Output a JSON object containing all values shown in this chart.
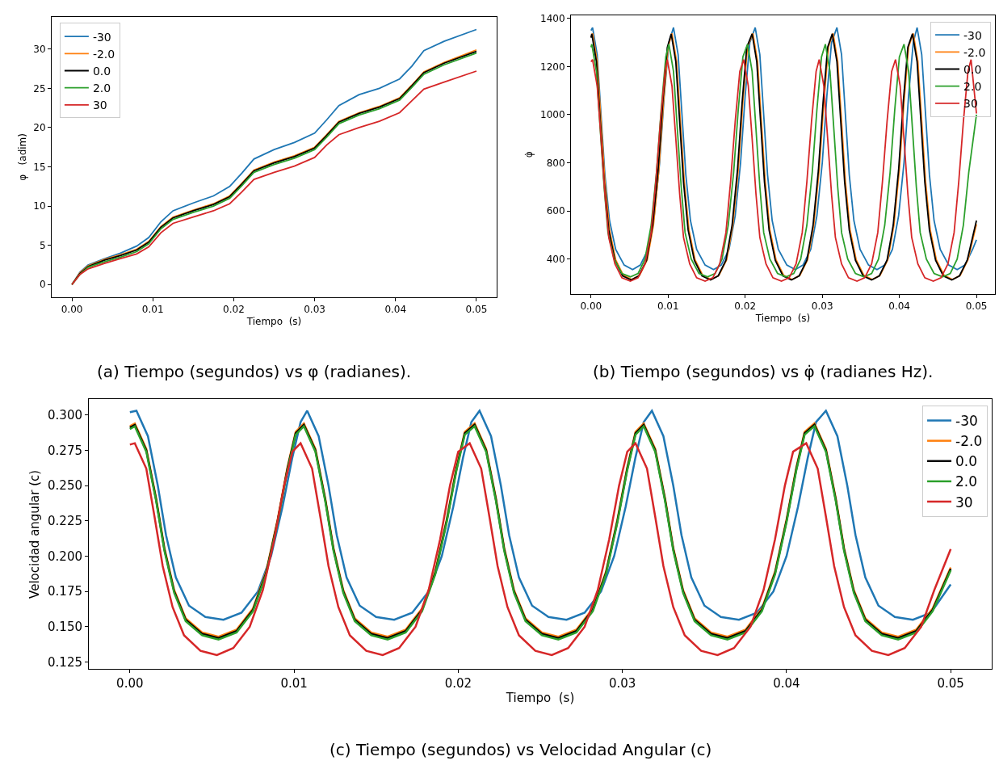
{
  "chart_data": [
    {
      "type": "line",
      "title": "(a) Tiempo (segundos) vs φ (radianes).",
      "xlabel": "Tiempo  (s)",
      "ylabel": "φ   (adim)",
      "legend": "top left",
      "xlim": [
        -0.0025,
        0.0525
      ],
      "xticks": [
        {
          "value": 0,
          "label": "0.00"
        },
        {
          "value": 0.01,
          "label": "0.01"
        },
        {
          "value": 0.02,
          "label": "0.02"
        },
        {
          "value": 0.03,
          "label": "0.03"
        },
        {
          "value": 0.04,
          "label": "0.04"
        },
        {
          "value": 0.05,
          "label": "0.05"
        }
      ],
      "ylim": [
        -1.6,
        34.1
      ],
      "yticks": [
        0,
        5,
        10,
        15,
        20,
        25,
        30
      ],
      "x": [
        0,
        0.001,
        0.002,
        0.004,
        0.006,
        0.008,
        0.0095,
        0.011,
        0.0125,
        0.015,
        0.0175,
        0.0195,
        0.021,
        0.0225,
        0.025,
        0.0275,
        0.03,
        0.0315,
        0.033,
        0.0355,
        0.038,
        0.0405,
        0.042,
        0.0435,
        0.046,
        0.05
      ],
      "series": [
        {
          "name": "-30",
          "color": "#1f77b4",
          "values": [
            0,
            1.6,
            2.5,
            3.3,
            4.0,
            4.9,
            6.0,
            8.0,
            9.4,
            10.4,
            11.3,
            12.5,
            14.2,
            16.0,
            17.2,
            18.1,
            19.3,
            21.0,
            22.8,
            24.2,
            25.0,
            26.2,
            27.8,
            29.8,
            31.0,
            32.5
          ]
        },
        {
          "name": "-2.0",
          "color": "#ff7f0e",
          "values": [
            0,
            1.5,
            2.4,
            3.2,
            3.8,
            4.5,
            5.5,
            7.4,
            8.6,
            9.5,
            10.3,
            11.3,
            12.9,
            14.6,
            15.6,
            16.4,
            17.5,
            19.1,
            20.8,
            21.9,
            22.7,
            23.8,
            25.4,
            27.1,
            28.3,
            29.9
          ]
        },
        {
          "name": "0.0",
          "color": "#000000",
          "values": [
            0,
            1.4,
            2.3,
            3.1,
            3.7,
            4.4,
            5.4,
            7.3,
            8.5,
            9.4,
            10.2,
            11.2,
            12.8,
            14.5,
            15.5,
            16.3,
            17.4,
            19.0,
            20.7,
            21.8,
            22.6,
            23.7,
            25.3,
            27.0,
            28.2,
            29.7
          ]
        },
        {
          "name": "2.0",
          "color": "#2ca02c",
          "values": [
            0,
            1.3,
            2.2,
            2.9,
            3.5,
            4.2,
            5.2,
            7.1,
            8.3,
            9.2,
            10.0,
            11.0,
            12.6,
            14.3,
            15.3,
            16.1,
            17.2,
            18.8,
            20.5,
            21.6,
            22.4,
            23.5,
            25.1,
            26.8,
            28.0,
            29.5
          ]
        },
        {
          "name": "30",
          "color": "#d62728",
          "values": [
            0,
            1.3,
            2.0,
            2.7,
            3.3,
            3.9,
            4.8,
            6.6,
            7.8,
            8.6,
            9.4,
            10.3,
            11.8,
            13.4,
            14.3,
            15.1,
            16.2,
            17.8,
            19.1,
            20.0,
            20.8,
            21.9,
            23.4,
            24.9,
            25.8,
            27.2
          ]
        }
      ]
    },
    {
      "type": "line",
      "title": "(b) Tiempo (segundos) vs φ̇ (radianes Hz).",
      "xlabel": "Tiempo  (s)",
      "ylabel": "φ̇",
      "legend": "top right",
      "xlim": [
        -0.0026,
        0.0524
      ],
      "xticks": [
        {
          "value": 0,
          "label": "0.00"
        },
        {
          "value": 0.01,
          "label": "0.01"
        },
        {
          "value": 0.02,
          "label": "0.02"
        },
        {
          "value": 0.03,
          "label": "0.03"
        },
        {
          "value": 0.04,
          "label": "0.04"
        },
        {
          "value": 0.05,
          "label": "0.05"
        }
      ],
      "ylim": [
        255,
        1413
      ],
      "yticks": [
        400,
        600,
        800,
        1000,
        1200,
        1400
      ],
      "x": [
        0,
        0.0001,
        0.0007,
        0.0012,
        0.0017,
        0.0023,
        0.0031,
        0.0041,
        0.0052,
        0.0062,
        0.0072,
        0.008,
        0.0087,
        0.0093,
        0.0099,
        0.0104,
        0.011,
        0.0115,
        0.012,
        0.0126,
        0.0134,
        0.0144,
        0.0155,
        0.0165,
        0.0175,
        0.0183,
        0.019,
        0.0196,
        0.0202,
        0.0209,
        0.0215,
        0.022,
        0.0225,
        0.0231,
        0.0239,
        0.0249,
        0.026,
        0.027,
        0.028,
        0.0288,
        0.0295,
        0.0301,
        0.0307,
        0.0313,
        0.0319,
        0.0324,
        0.0329,
        0.0335,
        0.0343,
        0.0353,
        0.0364,
        0.0374,
        0.0384,
        0.0392,
        0.0399,
        0.0405,
        0.0411,
        0.0417,
        0.0423,
        0.0428,
        0.0433,
        0.0439,
        0.0447,
        0.0457,
        0.0468,
        0.0478,
        0.0488,
        0.05
      ],
      "series": [
        {
          "name": "-30",
          "color": "#1f77b4",
          "x": [
            0,
            0.0002,
            0.0008,
            0.0013,
            0.0018,
            0.0024,
            0.0032,
            0.0043,
            0.0054,
            0.0064,
            0.0074,
            0.0082,
            0.0089,
            0.0095,
            0.0101,
            0.0107,
            0.0113,
            0.0118,
            0.0123,
            0.0129,
            0.0137,
            0.0148,
            0.0159,
            0.0169,
            0.0179,
            0.0187,
            0.0194,
            0.02,
            0.0206,
            0.0213,
            0.0219,
            0.0224,
            0.0229,
            0.0235,
            0.0243,
            0.0254,
            0.0265,
            0.0275,
            0.0285,
            0.0293,
            0.03,
            0.0306,
            0.0312,
            0.0319,
            0.0325,
            0.033,
            0.0335,
            0.0341,
            0.0349,
            0.036,
            0.0371,
            0.0381,
            0.0391,
            0.0399,
            0.0406,
            0.0412,
            0.0418,
            0.0423,
            0.0429,
            0.0434,
            0.0439,
            0.0445,
            0.0453,
            0.0464,
            0.0475,
            0.0485,
            0.0495,
            0.05
          ],
          "values": [
            1350,
            1362,
            1250,
            1000,
            750,
            560,
            440,
            375,
            356,
            375,
            440,
            580,
            800,
            1080,
            1300,
            1362,
            1250,
            1000,
            750,
            560,
            440,
            375,
            356,
            375,
            440,
            580,
            800,
            1080,
            1300,
            1362,
            1250,
            1000,
            750,
            560,
            440,
            375,
            356,
            375,
            440,
            580,
            800,
            1080,
            1300,
            1362,
            1250,
            1000,
            750,
            560,
            440,
            375,
            356,
            375,
            440,
            580,
            800,
            1080,
            1300,
            1362,
            1250,
            1000,
            750,
            560,
            440,
            375,
            356,
            375,
            440,
            480
          ]
        },
        {
          "name": "-2.0",
          "color": "#ff7f0e",
          "x": [
            0,
            0.0002,
            0.0008,
            0.0013,
            0.0018,
            0.0024,
            0.0032,
            0.0042,
            0.0053,
            0.0063,
            0.0073,
            0.0081,
            0.0088,
            0.0094,
            0.01,
            0.0105,
            0.0111,
            0.0116,
            0.0121,
            0.0127,
            0.0135,
            0.0145,
            0.0156,
            0.0166,
            0.0176,
            0.0184,
            0.0191,
            0.0197,
            0.0203,
            0.021,
            0.0216,
            0.0221,
            0.0226,
            0.0232,
            0.024,
            0.025,
            0.0261,
            0.0271,
            0.0281,
            0.0289,
            0.0296,
            0.0302,
            0.0308,
            0.0314,
            0.032,
            0.0325,
            0.033,
            0.0336,
            0.0344,
            0.0354,
            0.0365,
            0.0375,
            0.0385,
            0.0393,
            0.04,
            0.0406,
            0.0412,
            0.0418,
            0.0424,
            0.0429,
            0.0434,
            0.044,
            0.0448,
            0.0458,
            0.0469,
            0.0479,
            0.0489,
            0.05
          ],
          "values": [
            1322,
            1338,
            1222,
            972,
            722,
            522,
            397,
            332,
            315,
            332,
            397,
            542,
            772,
            1052,
            1282,
            1338,
            1222,
            972,
            722,
            522,
            397,
            332,
            315,
            332,
            397,
            542,
            772,
            1052,
            1282,
            1338,
            1222,
            972,
            722,
            522,
            397,
            332,
            315,
            332,
            397,
            542,
            772,
            1052,
            1282,
            1338,
            1222,
            972,
            722,
            522,
            397,
            332,
            315,
            332,
            397,
            542,
            772,
            1052,
            1282,
            1338,
            1222,
            972,
            722,
            522,
            397,
            332,
            315,
            332,
            397,
            545
          ]
        },
        {
          "name": "0.0",
          "color": "#000000",
          "values": [
            1320,
            1336,
            1220,
            970,
            720,
            520,
            395,
            330,
            313,
            330,
            395,
            540,
            770,
            1050,
            1280,
            1336,
            1220,
            970,
            720,
            520,
            395,
            330,
            313,
            330,
            395,
            540,
            770,
            1050,
            1280,
            1336,
            1220,
            970,
            720,
            520,
            395,
            330,
            313,
            330,
            395,
            540,
            770,
            1050,
            1280,
            1336,
            1220,
            970,
            720,
            520,
            395,
            330,
            313,
            330,
            395,
            540,
            770,
            1050,
            1280,
            1336,
            1220,
            970,
            720,
            520,
            395,
            330,
            313,
            330,
            395,
            560
          ]
        },
        {
          "name": "2.0",
          "color": "#2ca02c",
          "x": [
            0,
            0.0001,
            0.0007,
            0.0012,
            0.0017,
            0.0022,
            0.003,
            0.004,
            0.0051,
            0.0061,
            0.007,
            0.0078,
            0.0085,
            0.0091,
            0.0097,
            0.0101,
            0.0107,
            0.0112,
            0.0117,
            0.0122,
            0.013,
            0.014,
            0.0151,
            0.0161,
            0.017,
            0.0178,
            0.0185,
            0.0191,
            0.0197,
            0.0203,
            0.0209,
            0.0214,
            0.0219,
            0.0224,
            0.0232,
            0.0242,
            0.0253,
            0.0263,
            0.0272,
            0.028,
            0.0287,
            0.0293,
            0.0299,
            0.0304,
            0.031,
            0.0315,
            0.032,
            0.0325,
            0.0333,
            0.0343,
            0.0354,
            0.0364,
            0.0373,
            0.0381,
            0.0388,
            0.0394,
            0.04,
            0.0406,
            0.0412,
            0.0417,
            0.0422,
            0.0427,
            0.0435,
            0.0445,
            0.0456,
            0.0466,
            0.0475,
            0.0483,
            0.049,
            0.05
          ],
          "values": [
            1280,
            1293,
            1180,
            940,
            700,
            510,
            400,
            340,
            326,
            340,
            400,
            540,
            760,
            1020,
            1240,
            1293,
            1180,
            940,
            700,
            510,
            400,
            340,
            326,
            340,
            400,
            540,
            760,
            1020,
            1240,
            1293,
            1180,
            940,
            700,
            510,
            400,
            340,
            326,
            340,
            400,
            540,
            760,
            1020,
            1240,
            1293,
            1180,
            940,
            700,
            510,
            400,
            340,
            326,
            340,
            400,
            540,
            760,
            1020,
            1240,
            1293,
            1180,
            940,
            700,
            510,
            400,
            340,
            326,
            340,
            400,
            540,
            760,
            1000
          ]
        },
        {
          "name": "30",
          "color": "#d62728",
          "x": [
            0,
            0.0002,
            0.0008,
            0.0013,
            0.0018,
            0.0023,
            0.0031,
            0.004,
            0.0051,
            0.0061,
            0.007,
            0.0078,
            0.0084,
            0.009,
            0.0096,
            0.0099,
            0.0105,
            0.011,
            0.0115,
            0.012,
            0.0128,
            0.0137,
            0.0148,
            0.0158,
            0.0167,
            0.0175,
            0.0181,
            0.0187,
            0.0193,
            0.0198,
            0.0204,
            0.0209,
            0.0214,
            0.0219,
            0.0227,
            0.0236,
            0.0247,
            0.0257,
            0.0266,
            0.0274,
            0.028,
            0.0286,
            0.0292,
            0.0296,
            0.0302,
            0.0307,
            0.0312,
            0.0317,
            0.0325,
            0.0334,
            0.0345,
            0.0355,
            0.0364,
            0.0372,
            0.0378,
            0.0384,
            0.039,
            0.0395,
            0.0401,
            0.0406,
            0.0411,
            0.0416,
            0.0424,
            0.0433,
            0.0444,
            0.0454,
            0.0463,
            0.0471,
            0.0477,
            0.0483,
            0.0489,
            0.0493,
            0.05
          ],
          "values": [
            1220,
            1229,
            1120,
            900,
            670,
            490,
            380,
            322,
            308,
            322,
            380,
            510,
            720,
            970,
            1180,
            1229,
            1120,
            900,
            670,
            490,
            380,
            322,
            308,
            322,
            380,
            510,
            720,
            970,
            1180,
            1229,
            1120,
            900,
            670,
            490,
            380,
            322,
            308,
            322,
            380,
            510,
            720,
            970,
            1180,
            1229,
            1120,
            900,
            670,
            490,
            380,
            322,
            308,
            322,
            380,
            510,
            720,
            970,
            1180,
            1229,
            1120,
            900,
            670,
            490,
            380,
            322,
            308,
            322,
            380,
            510,
            720,
            970,
            1180,
            1229,
            1005
          ]
        }
      ]
    },
    {
      "type": "line",
      "title": "(c) Tiempo (segundos) vs Velocidad Angular (c)",
      "xlabel": "Tiempo  (s)",
      "ylabel": "Velocidad angular (c)",
      "legend": "top right",
      "xlim": [
        -0.0025,
        0.0525
      ],
      "xticks": [
        {
          "value": 0,
          "label": "0.00"
        },
        {
          "value": 0.01,
          "label": "0.01"
        },
        {
          "value": 0.02,
          "label": "0.02"
        },
        {
          "value": 0.03,
          "label": "0.03"
        },
        {
          "value": 0.04,
          "label": "0.04"
        },
        {
          "value": 0.05,
          "label": "0.05"
        }
      ],
      "ylim": [
        0.12,
        0.311
      ],
      "yticks": [
        0.125,
        {
          "value": 0.15,
          "label": "0.150"
        },
        0.175,
        {
          "value": 0.2,
          "label": "0.200"
        },
        0.225,
        {
          "value": 0.25,
          "label": "0.250"
        },
        0.275,
        {
          "value": 0.3,
          "label": "0.300"
        }
      ],
      "x": [
        0,
        0.0003,
        0.001,
        0.0016,
        0.0021,
        0.0027,
        0.0034,
        0.0044,
        0.0054,
        0.0065,
        0.0075,
        0.0083,
        0.009,
        0.0096,
        0.0101,
        0.0106,
        0.0113,
        0.0119,
        0.0124,
        0.013,
        0.0137,
        0.0147,
        0.0157,
        0.0168,
        0.0178,
        0.0186,
        0.0193,
        0.0199,
        0.0204,
        0.021,
        0.0217,
        0.0223,
        0.0228,
        0.0234,
        0.0241,
        0.0251,
        0.0261,
        0.0272,
        0.0282,
        0.029,
        0.0297,
        0.0303,
        0.0308,
        0.0313,
        0.032,
        0.0326,
        0.0331,
        0.0337,
        0.0344,
        0.0354,
        0.0364,
        0.0375,
        0.0385,
        0.0393,
        0.04,
        0.0406,
        0.0411,
        0.0417,
        0.0424,
        0.043,
        0.0435,
        0.0441,
        0.0448,
        0.0458,
        0.0468,
        0.0479,
        0.0489,
        0.05
      ],
      "series": [
        {
          "name": "-30",
          "color": "#1f77b4",
          "x": [
            0,
            0.0004,
            0.0011,
            0.0017,
            0.0022,
            0.0028,
            0.0036,
            0.0046,
            0.0057,
            0.0068,
            0.0078,
            0.0086,
            0.0093,
            0.0099,
            0.0104,
            0.0108,
            0.0115,
            0.0121,
            0.0126,
            0.0132,
            0.014,
            0.015,
            0.0161,
            0.0172,
            0.0182,
            0.019,
            0.0197,
            0.0203,
            0.0208,
            0.0213,
            0.022,
            0.0226,
            0.0231,
            0.0237,
            0.0245,
            0.0255,
            0.0266,
            0.0277,
            0.0287,
            0.0295,
            0.0302,
            0.0308,
            0.0313,
            0.0318,
            0.0325,
            0.0331,
            0.0336,
            0.0342,
            0.035,
            0.036,
            0.0371,
            0.0382,
            0.0392,
            0.04,
            0.0407,
            0.0413,
            0.0418,
            0.0424,
            0.0431,
            0.0437,
            0.0442,
            0.0448,
            0.0456,
            0.0466,
            0.0477,
            0.0488,
            0.05
          ],
          "values": [
            0.302,
            0.303,
            0.285,
            0.25,
            0.215,
            0.185,
            0.165,
            0.157,
            0.155,
            0.16,
            0.175,
            0.2,
            0.235,
            0.27,
            0.295,
            0.303,
            0.285,
            0.25,
            0.215,
            0.185,
            0.165,
            0.157,
            0.155,
            0.16,
            0.175,
            0.2,
            0.235,
            0.27,
            0.295,
            0.303,
            0.285,
            0.25,
            0.215,
            0.185,
            0.165,
            0.157,
            0.155,
            0.16,
            0.175,
            0.2,
            0.235,
            0.27,
            0.295,
            0.303,
            0.285,
            0.25,
            0.215,
            0.185,
            0.165,
            0.157,
            0.155,
            0.16,
            0.175,
            0.2,
            0.235,
            0.27,
            0.295,
            0.303,
            0.285,
            0.25,
            0.215,
            0.185,
            0.165,
            0.157,
            0.155,
            0.16,
            0.18
          ]
        },
        {
          "name": "-2.0",
          "color": "#ff7f0e",
          "values": [
            0.292,
            0.294,
            0.276,
            0.241,
            0.206,
            0.176,
            0.156,
            0.146,
            0.143,
            0.148,
            0.163,
            0.189,
            0.226,
            0.263,
            0.288,
            0.294,
            0.276,
            0.241,
            0.206,
            0.176,
            0.156,
            0.146,
            0.143,
            0.148,
            0.163,
            0.189,
            0.226,
            0.263,
            0.288,
            0.294,
            0.276,
            0.241,
            0.206,
            0.176,
            0.156,
            0.146,
            0.143,
            0.148,
            0.163,
            0.189,
            0.226,
            0.263,
            0.288,
            0.294,
            0.276,
            0.241,
            0.206,
            0.176,
            0.156,
            0.146,
            0.143,
            0.148,
            0.163,
            0.189,
            0.226,
            0.263,
            0.288,
            0.294,
            0.276,
            0.241,
            0.206,
            0.176,
            0.156,
            0.146,
            0.143,
            0.148,
            0.163,
            0.192
          ]
        },
        {
          "name": "0.0",
          "color": "#000000",
          "values": [
            0.291,
            0.293,
            0.275,
            0.24,
            0.205,
            0.175,
            0.155,
            0.145,
            0.142,
            0.147,
            0.162,
            0.188,
            0.225,
            0.262,
            0.287,
            0.293,
            0.275,
            0.24,
            0.205,
            0.175,
            0.155,
            0.145,
            0.142,
            0.147,
            0.162,
            0.188,
            0.225,
            0.262,
            0.287,
            0.293,
            0.275,
            0.24,
            0.205,
            0.175,
            0.155,
            0.145,
            0.142,
            0.147,
            0.162,
            0.188,
            0.225,
            0.262,
            0.287,
            0.293,
            0.275,
            0.24,
            0.205,
            0.175,
            0.155,
            0.145,
            0.142,
            0.147,
            0.162,
            0.188,
            0.225,
            0.262,
            0.287,
            0.293,
            0.275,
            0.24,
            0.205,
            0.175,
            0.155,
            0.145,
            0.142,
            0.147,
            0.162,
            0.191
          ]
        },
        {
          "name": "2.0",
          "color": "#2ca02c",
          "values": [
            0.29,
            0.292,
            0.274,
            0.239,
            0.204,
            0.174,
            0.154,
            0.144,
            0.141,
            0.146,
            0.161,
            0.187,
            0.224,
            0.261,
            0.286,
            0.292,
            0.274,
            0.239,
            0.204,
            0.174,
            0.154,
            0.144,
            0.141,
            0.146,
            0.161,
            0.187,
            0.224,
            0.261,
            0.286,
            0.292,
            0.274,
            0.239,
            0.204,
            0.174,
            0.154,
            0.144,
            0.141,
            0.146,
            0.161,
            0.187,
            0.224,
            0.261,
            0.286,
            0.292,
            0.274,
            0.239,
            0.204,
            0.174,
            0.154,
            0.144,
            0.141,
            0.146,
            0.161,
            0.187,
            0.224,
            0.261,
            0.286,
            0.292,
            0.274,
            0.239,
            0.204,
            0.174,
            0.154,
            0.144,
            0.141,
            0.146,
            0.161,
            0.19
          ]
        },
        {
          "name": "30",
          "color": "#d62728",
          "x": [
            0,
            0.0003,
            0.001,
            0.0015,
            0.002,
            0.0026,
            0.0033,
            0.0043,
            0.0053,
            0.0063,
            0.0073,
            0.0081,
            0.0088,
            0.0094,
            0.0099,
            0.0104,
            0.0111,
            0.0116,
            0.0121,
            0.0127,
            0.0134,
            0.0144,
            0.0154,
            0.0164,
            0.0174,
            0.0182,
            0.0189,
            0.0195,
            0.02,
            0.0207,
            0.0214,
            0.0219,
            0.0224,
            0.023,
            0.0237,
            0.0247,
            0.0257,
            0.0267,
            0.0277,
            0.0285,
            0.0292,
            0.0298,
            0.0303,
            0.0308,
            0.0315,
            0.032,
            0.0325,
            0.0331,
            0.0338,
            0.0348,
            0.0358,
            0.0368,
            0.0378,
            0.0386,
            0.0393,
            0.0399,
            0.0404,
            0.0412,
            0.0419,
            0.0424,
            0.0429,
            0.0435,
            0.0442,
            0.0452,
            0.0462,
            0.0472,
            0.0482,
            0.049,
            0.05
          ],
          "values": [
            0.279,
            0.28,
            0.262,
            0.228,
            0.193,
            0.164,
            0.144,
            0.133,
            0.13,
            0.135,
            0.15,
            0.176,
            0.212,
            0.25,
            0.274,
            0.28,
            0.262,
            0.228,
            0.193,
            0.164,
            0.144,
            0.133,
            0.13,
            0.135,
            0.15,
            0.176,
            0.212,
            0.25,
            0.274,
            0.28,
            0.262,
            0.228,
            0.193,
            0.164,
            0.144,
            0.133,
            0.13,
            0.135,
            0.15,
            0.176,
            0.212,
            0.25,
            0.274,
            0.28,
            0.262,
            0.228,
            0.193,
            0.164,
            0.144,
            0.133,
            0.13,
            0.135,
            0.15,
            0.176,
            0.212,
            0.25,
            0.274,
            0.28,
            0.262,
            0.228,
            0.193,
            0.164,
            0.144,
            0.133,
            0.13,
            0.135,
            0.15,
            0.176,
            0.205
          ]
        }
      ]
    }
  ]
}
